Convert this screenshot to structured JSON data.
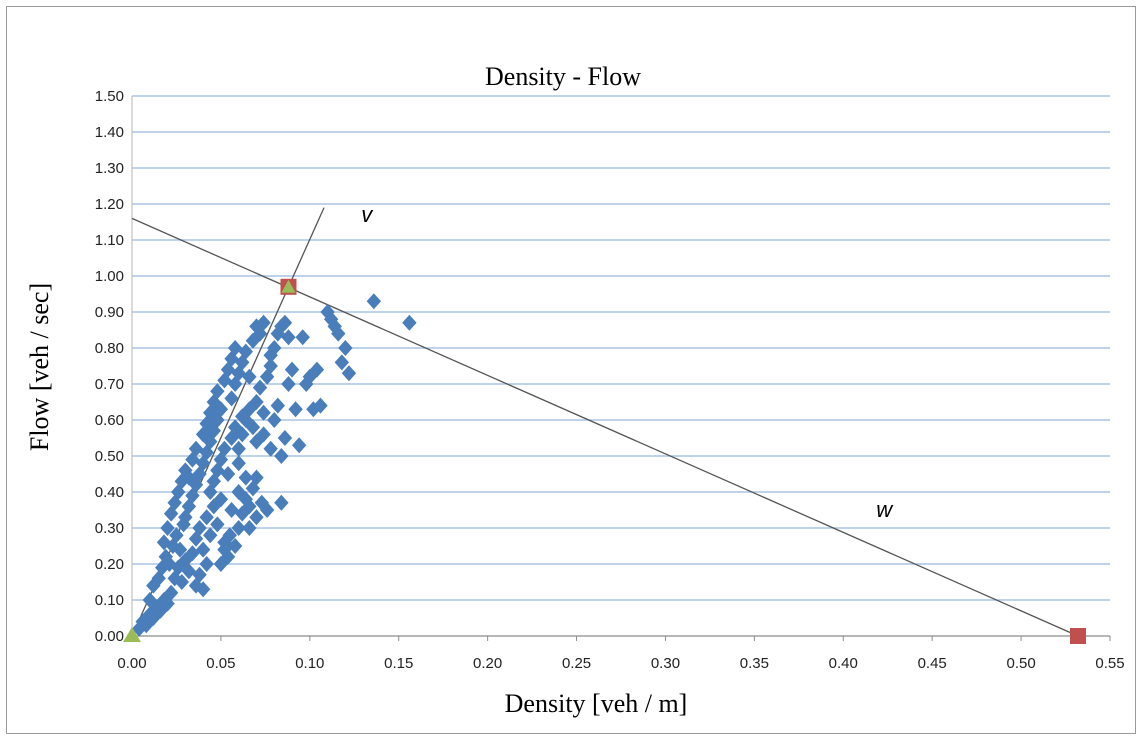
{
  "chart_data": {
    "type": "scatter",
    "title": "Density - Flow",
    "xlabel": "Density [veh / m]",
    "ylabel": "Flow [veh / sec]",
    "xlim": [
      0,
      0.55
    ],
    "ylim": [
      0,
      1.5
    ],
    "x_ticks": [
      "0.00",
      "0.05",
      "0.10",
      "0.15",
      "0.20",
      "0.25",
      "0.30",
      "0.35",
      "0.40",
      "0.45",
      "0.50",
      "0.55"
    ],
    "y_ticks": [
      "0.00",
      "0.10",
      "0.20",
      "0.30",
      "0.40",
      "0.50",
      "0.60",
      "0.70",
      "0.80",
      "0.90",
      "1.00",
      "1.10",
      "1.20",
      "1.30",
      "1.40",
      "1.50"
    ],
    "grid": "horizontal",
    "series": [
      {
        "marker": "diamond",
        "color": "#4a7ebb",
        "points": [
          [
            0.004,
            0.02
          ],
          [
            0.006,
            0.04
          ],
          [
            0.008,
            0.03
          ],
          [
            0.01,
            0.06
          ],
          [
            0.012,
            0.05
          ],
          [
            0.014,
            0.08
          ],
          [
            0.016,
            0.07
          ],
          [
            0.018,
            0.1
          ],
          [
            0.02,
            0.09
          ],
          [
            0.022,
            0.12
          ],
          [
            0.01,
            0.1
          ],
          [
            0.012,
            0.14
          ],
          [
            0.015,
            0.16
          ],
          [
            0.017,
            0.19
          ],
          [
            0.019,
            0.22
          ],
          [
            0.021,
            0.2
          ],
          [
            0.023,
            0.25
          ],
          [
            0.025,
            0.28
          ],
          [
            0.027,
            0.24
          ],
          [
            0.029,
            0.31
          ],
          [
            0.018,
            0.26
          ],
          [
            0.02,
            0.3
          ],
          [
            0.022,
            0.34
          ],
          [
            0.024,
            0.37
          ],
          [
            0.026,
            0.4
          ],
          [
            0.028,
            0.43
          ],
          [
            0.03,
            0.46
          ],
          [
            0.032,
            0.44
          ],
          [
            0.034,
            0.49
          ],
          [
            0.036,
            0.52
          ],
          [
            0.024,
            0.16
          ],
          [
            0.026,
            0.19
          ],
          [
            0.028,
            0.15
          ],
          [
            0.03,
            0.21
          ],
          [
            0.032,
            0.18
          ],
          [
            0.034,
            0.23
          ],
          [
            0.036,
            0.14
          ],
          [
            0.038,
            0.17
          ],
          [
            0.04,
            0.13
          ],
          [
            0.042,
            0.2
          ],
          [
            0.03,
            0.33
          ],
          [
            0.032,
            0.36
          ],
          [
            0.034,
            0.39
          ],
          [
            0.036,
            0.42
          ],
          [
            0.038,
            0.45
          ],
          [
            0.04,
            0.48
          ],
          [
            0.042,
            0.51
          ],
          [
            0.044,
            0.54
          ],
          [
            0.046,
            0.57
          ],
          [
            0.048,
            0.6
          ],
          [
            0.036,
            0.27
          ],
          [
            0.038,
            0.3
          ],
          [
            0.04,
            0.24
          ],
          [
            0.042,
            0.33
          ],
          [
            0.044,
            0.28
          ],
          [
            0.046,
            0.36
          ],
          [
            0.048,
            0.31
          ],
          [
            0.05,
            0.38
          ],
          [
            0.052,
            0.26
          ],
          [
            0.054,
            0.22
          ],
          [
            0.04,
            0.56
          ],
          [
            0.042,
            0.59
          ],
          [
            0.044,
            0.62
          ],
          [
            0.046,
            0.65
          ],
          [
            0.048,
            0.68
          ],
          [
            0.05,
            0.63
          ],
          [
            0.052,
            0.71
          ],
          [
            0.054,
            0.74
          ],
          [
            0.056,
            0.77
          ],
          [
            0.058,
            0.8
          ],
          [
            0.044,
            0.4
          ],
          [
            0.046,
            0.43
          ],
          [
            0.048,
            0.46
          ],
          [
            0.05,
            0.49
          ],
          [
            0.052,
            0.52
          ],
          [
            0.054,
            0.45
          ],
          [
            0.056,
            0.55
          ],
          [
            0.058,
            0.58
          ],
          [
            0.06,
            0.48
          ],
          [
            0.062,
            0.61
          ],
          [
            0.05,
            0.2
          ],
          [
            0.052,
            0.24
          ],
          [
            0.055,
            0.28
          ],
          [
            0.058,
            0.25
          ],
          [
            0.06,
            0.3
          ],
          [
            0.062,
            0.34
          ],
          [
            0.064,
            0.38
          ],
          [
            0.066,
            0.36
          ],
          [
            0.068,
            0.41
          ],
          [
            0.07,
            0.44
          ],
          [
            0.056,
            0.66
          ],
          [
            0.058,
            0.7
          ],
          [
            0.06,
            0.73
          ],
          [
            0.062,
            0.76
          ],
          [
            0.064,
            0.79
          ],
          [
            0.066,
            0.72
          ],
          [
            0.068,
            0.82
          ],
          [
            0.07,
            0.86
          ],
          [
            0.072,
            0.84
          ],
          [
            0.074,
            0.87
          ],
          [
            0.06,
            0.52
          ],
          [
            0.062,
            0.56
          ],
          [
            0.064,
            0.6
          ],
          [
            0.066,
            0.63
          ],
          [
            0.068,
            0.58
          ],
          [
            0.07,
            0.65
          ],
          [
            0.072,
            0.69
          ],
          [
            0.074,
            0.62
          ],
          [
            0.076,
            0.72
          ],
          [
            0.078,
            0.75
          ],
          [
            0.066,
            0.3
          ],
          [
            0.07,
            0.33
          ],
          [
            0.073,
            0.37
          ],
          [
            0.076,
            0.35
          ],
          [
            0.08,
            0.8
          ],
          [
            0.082,
            0.84
          ],
          [
            0.084,
            0.86
          ],
          [
            0.086,
            0.87
          ],
          [
            0.088,
            0.83
          ],
          [
            0.078,
            0.78
          ],
          [
            0.08,
            0.6
          ],
          [
            0.082,
            0.64
          ],
          [
            0.084,
            0.5
          ],
          [
            0.086,
            0.55
          ],
          [
            0.088,
            0.7
          ],
          [
            0.09,
            0.74
          ],
          [
            0.092,
            0.63
          ],
          [
            0.094,
            0.53
          ],
          [
            0.096,
            0.83
          ],
          [
            0.084,
            0.37
          ],
          [
            0.098,
            0.7
          ],
          [
            0.1,
            0.72
          ],
          [
            0.102,
            0.63
          ],
          [
            0.104,
            0.74
          ],
          [
            0.106,
            0.64
          ],
          [
            0.11,
            0.9
          ],
          [
            0.112,
            0.88
          ],
          [
            0.114,
            0.86
          ],
          [
            0.116,
            0.84
          ],
          [
            0.118,
            0.76
          ],
          [
            0.12,
            0.8
          ],
          [
            0.122,
            0.73
          ],
          [
            0.136,
            0.93
          ],
          [
            0.156,
            0.87
          ],
          [
            0.07,
            0.54
          ],
          [
            0.074,
            0.56
          ],
          [
            0.078,
            0.52
          ],
          [
            0.064,
            0.44
          ],
          [
            0.06,
            0.4
          ],
          [
            0.056,
            0.35
          ]
        ]
      },
      {
        "marker": "square",
        "color": "#c0504d",
        "points": [
          [
            0.088,
            0.97
          ],
          [
            0.532,
            0.0
          ]
        ]
      },
      {
        "marker": "triangle",
        "color": "#9bbb59",
        "points": [
          [
            0.0,
            0.0
          ]
        ]
      }
    ],
    "lines": [
      {
        "label": "v",
        "from": [
          0.0,
          0.0
        ],
        "to": [
          0.108,
          1.19
        ],
        "label_at": [
          0.132,
          1.15
        ]
      },
      {
        "label": "w",
        "from": [
          0.0,
          1.16
        ],
        "to": [
          0.532,
          0.0
        ],
        "label_at": [
          0.423,
          0.33
        ]
      }
    ]
  }
}
